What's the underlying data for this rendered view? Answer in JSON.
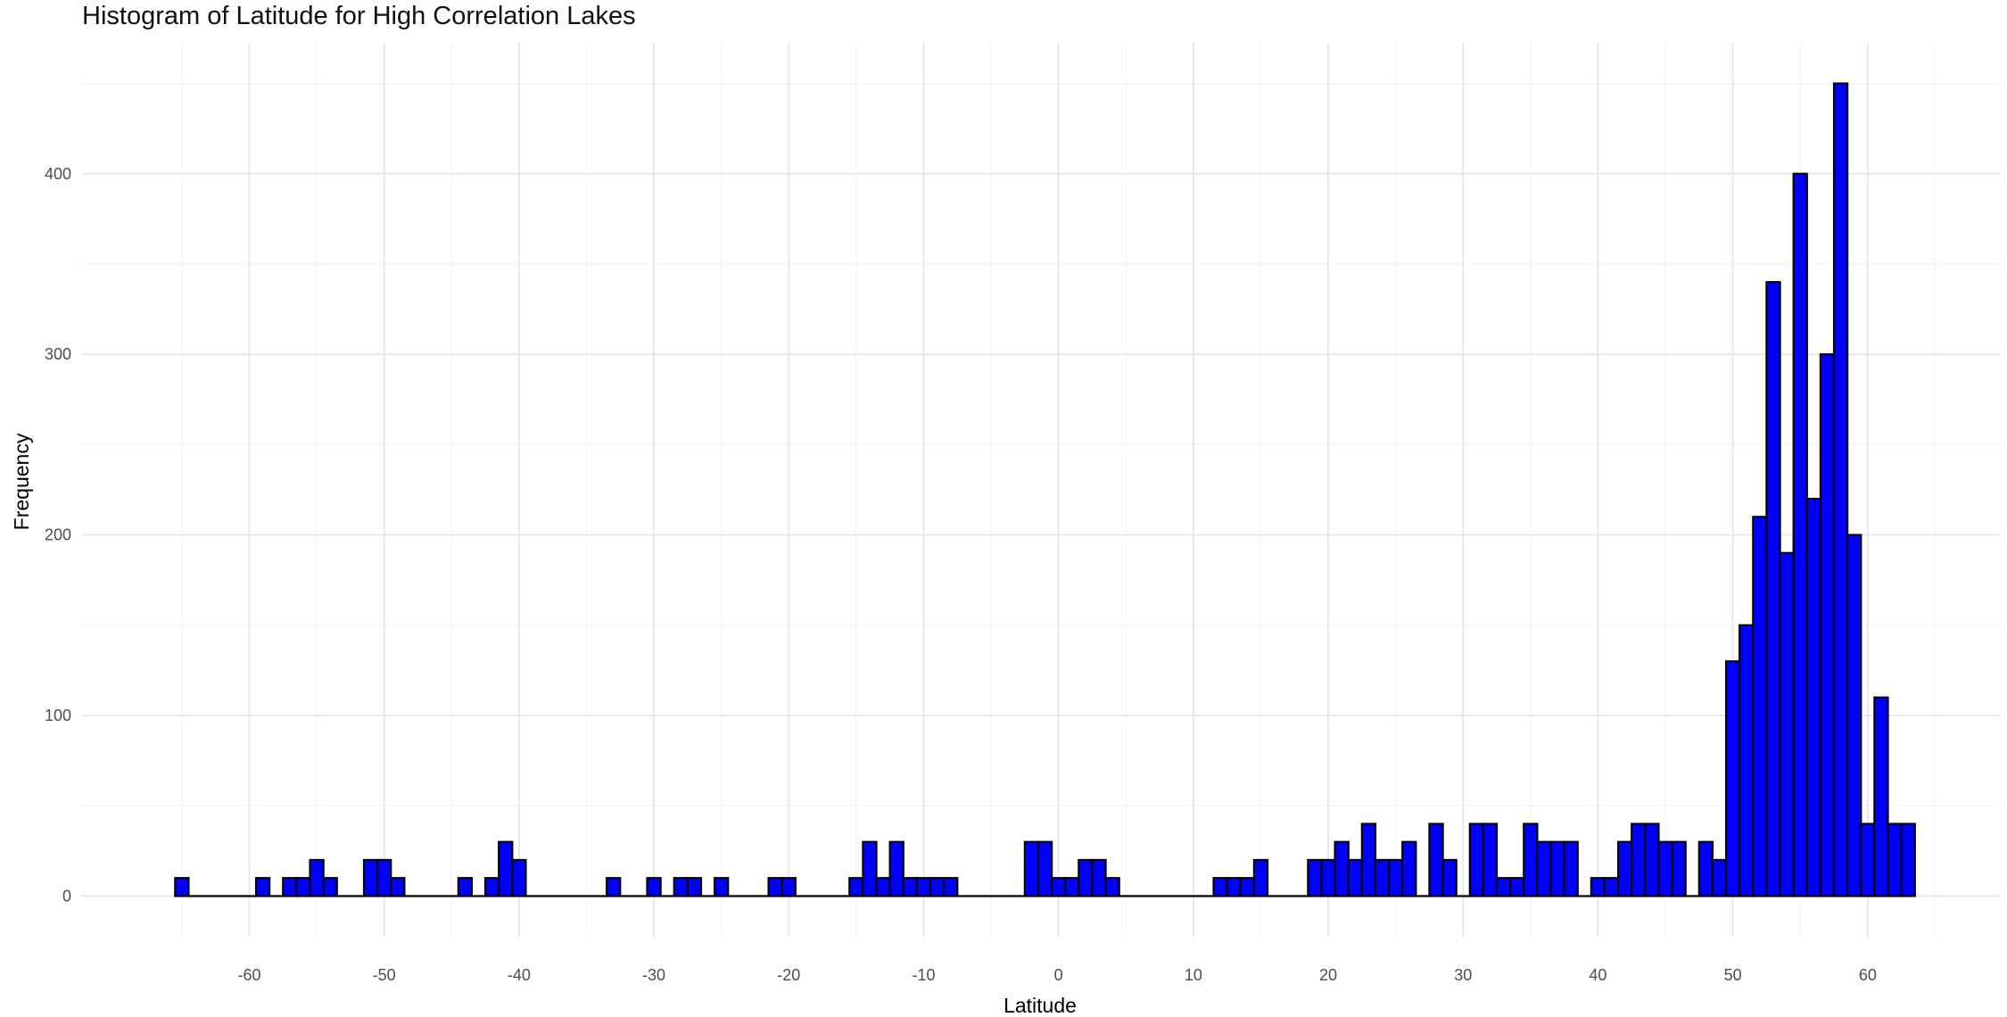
{
  "chart_data": {
    "type": "bar",
    "title": "Histogram of Latitude for High Correlation Lakes",
    "xlabel": "Latitude",
    "ylabel": "Frequency",
    "x_ticks": [
      -60,
      -50,
      -40,
      -30,
      -20,
      -10,
      0,
      10,
      20,
      30,
      40,
      50,
      60
    ],
    "y_ticks": [
      0,
      100,
      200,
      300,
      400
    ],
    "xlim": [
      -72.4,
      69.8
    ],
    "ylim": [
      -22.5,
      472.5
    ],
    "bin_width": 1,
    "grid": true,
    "bar_color": "#0000ff",
    "bar_outline": "#000000",
    "bins": [
      {
        "x": -65,
        "count": 10
      },
      {
        "x": -64,
        "count": 0
      },
      {
        "x": -63,
        "count": 0
      },
      {
        "x": -62,
        "count": 0
      },
      {
        "x": -61,
        "count": 0
      },
      {
        "x": -60,
        "count": 0
      },
      {
        "x": -59,
        "count": 10
      },
      {
        "x": -58,
        "count": 0
      },
      {
        "x": -57,
        "count": 10
      },
      {
        "x": -56,
        "count": 10
      },
      {
        "x": -55,
        "count": 20
      },
      {
        "x": -54,
        "count": 10
      },
      {
        "x": -53,
        "count": 0
      },
      {
        "x": -52,
        "count": 0
      },
      {
        "x": -51,
        "count": 20
      },
      {
        "x": -50,
        "count": 20
      },
      {
        "x": -49,
        "count": 10
      },
      {
        "x": -48,
        "count": 0
      },
      {
        "x": -47,
        "count": 0
      },
      {
        "x": -46,
        "count": 0
      },
      {
        "x": -45,
        "count": 0
      },
      {
        "x": -44,
        "count": 10
      },
      {
        "x": -43,
        "count": 0
      },
      {
        "x": -42,
        "count": 10
      },
      {
        "x": -41,
        "count": 30
      },
      {
        "x": -40,
        "count": 20
      },
      {
        "x": -39,
        "count": 0
      },
      {
        "x": -38,
        "count": 0
      },
      {
        "x": -37,
        "count": 0
      },
      {
        "x": -36,
        "count": 0
      },
      {
        "x": -35,
        "count": 0
      },
      {
        "x": -34,
        "count": 0
      },
      {
        "x": -33,
        "count": 10
      },
      {
        "x": -32,
        "count": 0
      },
      {
        "x": -31,
        "count": 0
      },
      {
        "x": -30,
        "count": 10
      },
      {
        "x": -29,
        "count": 0
      },
      {
        "x": -28,
        "count": 10
      },
      {
        "x": -27,
        "count": 10
      },
      {
        "x": -26,
        "count": 0
      },
      {
        "x": -25,
        "count": 10
      },
      {
        "x": -24,
        "count": 0
      },
      {
        "x": -23,
        "count": 0
      },
      {
        "x": -22,
        "count": 0
      },
      {
        "x": -21,
        "count": 10
      },
      {
        "x": -20,
        "count": 10
      },
      {
        "x": -19,
        "count": 0
      },
      {
        "x": -18,
        "count": 0
      },
      {
        "x": -17,
        "count": 0
      },
      {
        "x": -16,
        "count": 0
      },
      {
        "x": -15,
        "count": 10
      },
      {
        "x": -14,
        "count": 30
      },
      {
        "x": -13,
        "count": 10
      },
      {
        "x": -12,
        "count": 30
      },
      {
        "x": -11,
        "count": 10
      },
      {
        "x": -10,
        "count": 10
      },
      {
        "x": -9,
        "count": 10
      },
      {
        "x": -8,
        "count": 10
      },
      {
        "x": -7,
        "count": 0
      },
      {
        "x": -6,
        "count": 0
      },
      {
        "x": -5,
        "count": 0
      },
      {
        "x": -4,
        "count": 0
      },
      {
        "x": -3,
        "count": 0
      },
      {
        "x": -2,
        "count": 30
      },
      {
        "x": -1,
        "count": 30
      },
      {
        "x": 0,
        "count": 10
      },
      {
        "x": 1,
        "count": 10
      },
      {
        "x": 2,
        "count": 20
      },
      {
        "x": 3,
        "count": 20
      },
      {
        "x": 4,
        "count": 10
      },
      {
        "x": 5,
        "count": 0
      },
      {
        "x": 6,
        "count": 0
      },
      {
        "x": 7,
        "count": 0
      },
      {
        "x": 8,
        "count": 0
      },
      {
        "x": 9,
        "count": 0
      },
      {
        "x": 10,
        "count": 0
      },
      {
        "x": 11,
        "count": 0
      },
      {
        "x": 12,
        "count": 10
      },
      {
        "x": 13,
        "count": 10
      },
      {
        "x": 14,
        "count": 10
      },
      {
        "x": 15,
        "count": 20
      },
      {
        "x": 16,
        "count": 0
      },
      {
        "x": 17,
        "count": 0
      },
      {
        "x": 18,
        "count": 0
      },
      {
        "x": 19,
        "count": 20
      },
      {
        "x": 20,
        "count": 20
      },
      {
        "x": 21,
        "count": 30
      },
      {
        "x": 22,
        "count": 20
      },
      {
        "x": 23,
        "count": 40
      },
      {
        "x": 24,
        "count": 20
      },
      {
        "x": 25,
        "count": 20
      },
      {
        "x": 26,
        "count": 30
      },
      {
        "x": 27,
        "count": 0
      },
      {
        "x": 28,
        "count": 40
      },
      {
        "x": 29,
        "count": 20
      },
      {
        "x": 30,
        "count": 0
      },
      {
        "x": 31,
        "count": 40
      },
      {
        "x": 32,
        "count": 40
      },
      {
        "x": 33,
        "count": 10
      },
      {
        "x": 34,
        "count": 10
      },
      {
        "x": 35,
        "count": 40
      },
      {
        "x": 36,
        "count": 30
      },
      {
        "x": 37,
        "count": 30
      },
      {
        "x": 38,
        "count": 30
      },
      {
        "x": 39,
        "count": 0
      },
      {
        "x": 40,
        "count": 10
      },
      {
        "x": 41,
        "count": 10
      },
      {
        "x": 42,
        "count": 30
      },
      {
        "x": 43,
        "count": 40
      },
      {
        "x": 44,
        "count": 40
      },
      {
        "x": 45,
        "count": 30
      },
      {
        "x": 46,
        "count": 30
      },
      {
        "x": 47,
        "count": 0
      },
      {
        "x": 48,
        "count": 30
      },
      {
        "x": 49,
        "count": 20
      },
      {
        "x": 50,
        "count": 130
      },
      {
        "x": 51,
        "count": 150
      },
      {
        "x": 52,
        "count": 210
      },
      {
        "x": 53,
        "count": 340
      },
      {
        "x": 54,
        "count": 190
      },
      {
        "x": 55,
        "count": 400
      },
      {
        "x": 56,
        "count": 220
      },
      {
        "x": 57,
        "count": 300
      },
      {
        "x": 58,
        "count": 450
      },
      {
        "x": 59,
        "count": 200
      },
      {
        "x": 60,
        "count": 40
      },
      {
        "x": 61,
        "count": 110
      },
      {
        "x": 62,
        "count": 40
      },
      {
        "x": 63,
        "count": 40
      }
    ]
  }
}
